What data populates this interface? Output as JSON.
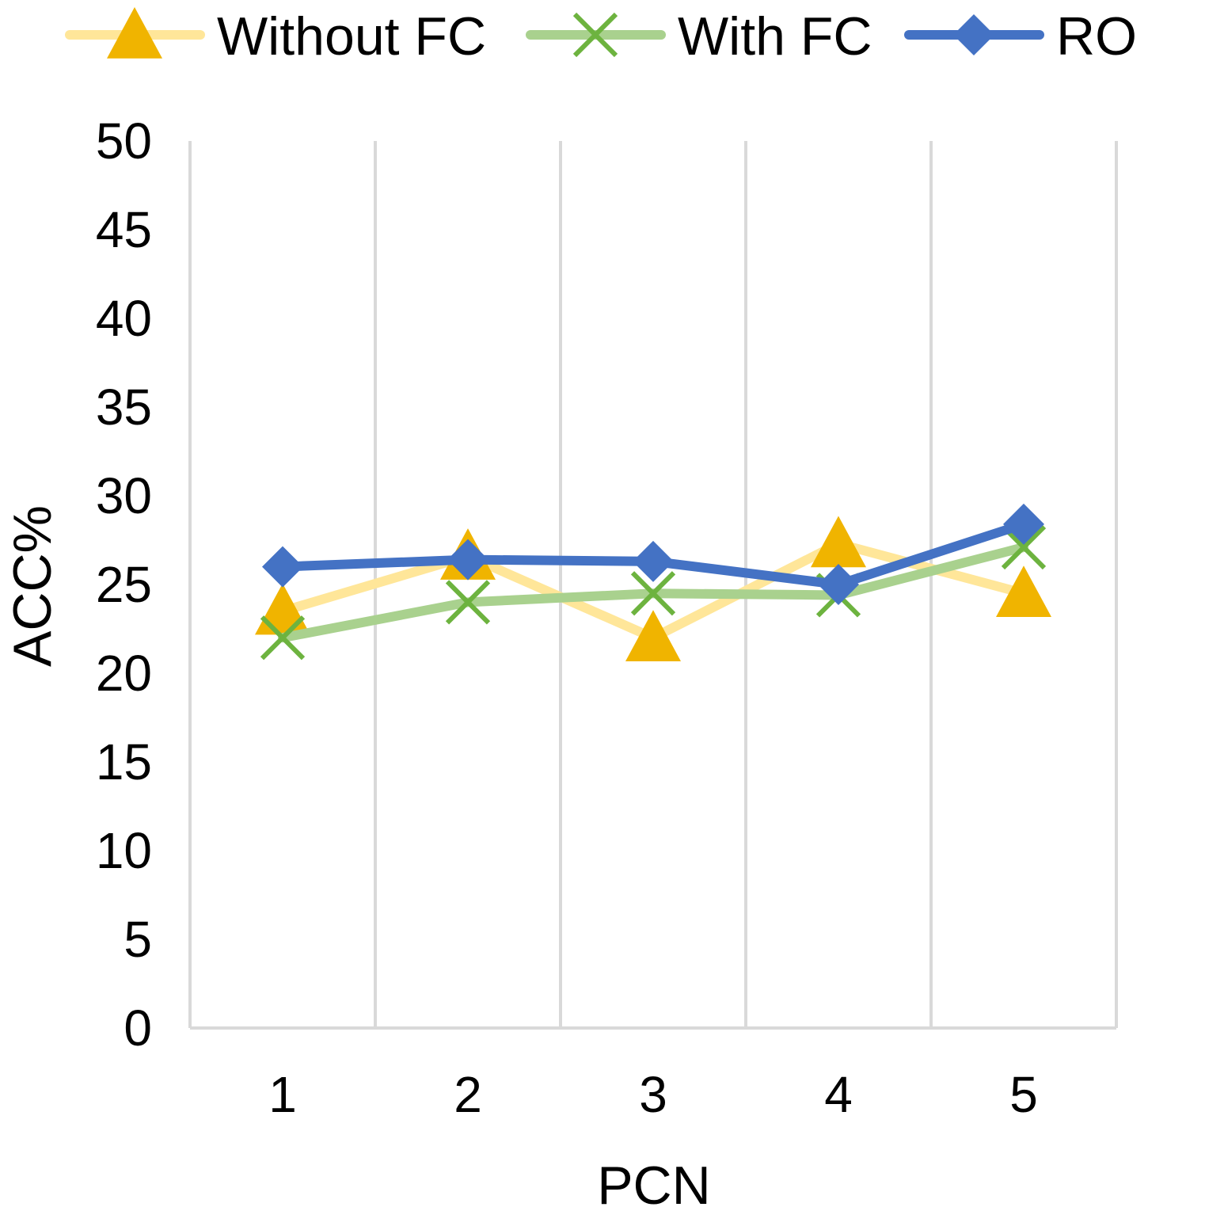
{
  "chart_data": {
    "type": "line",
    "title": "",
    "xlabel": "PCN",
    "ylabel": "ACC%",
    "categories": [
      "1",
      "2",
      "3",
      "4",
      "5"
    ],
    "ylim": [
      0,
      50
    ],
    "yticks": [
      "0",
      "5",
      "10",
      "15",
      "20",
      "25",
      "30",
      "35",
      "40",
      "45",
      "50"
    ],
    "grid": "vertical",
    "legend_position": "top",
    "series": [
      {
        "name": "Without FC",
        "values": [
          23.5,
          26.6,
          22.0,
          27.3,
          24.5
        ],
        "line_color": "#FFE699",
        "marker_color": "#F0B400",
        "marker": "triangle"
      },
      {
        "name": "With FC",
        "values": [
          22.0,
          24.0,
          24.5,
          24.4,
          27.1
        ],
        "line_color": "#A9D18E",
        "marker_color": "#6DB33F",
        "marker": "x"
      },
      {
        "name": "RO",
        "values": [
          26.0,
          26.4,
          26.3,
          25.0,
          28.4
        ],
        "line_color": "#4472C4",
        "marker_color": "#4472C4",
        "marker": "diamond"
      }
    ]
  }
}
